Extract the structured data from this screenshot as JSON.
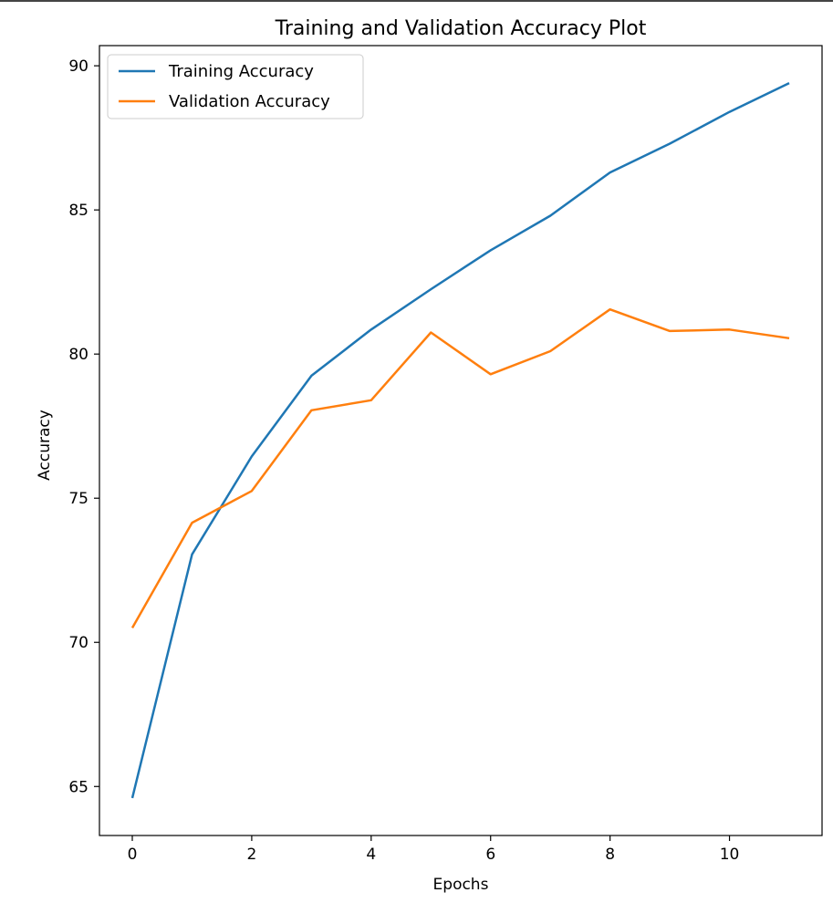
{
  "chart_data": {
    "type": "line",
    "title": "Training and Validation Accuracy Plot",
    "xlabel": "Epochs",
    "ylabel": "Accuracy",
    "x": [
      0,
      1,
      2,
      3,
      4,
      5,
      6,
      7,
      8,
      9,
      10,
      11
    ],
    "xlim": [
      -0.55,
      11.55
    ],
    "ylim": [
      63.3,
      90.7
    ],
    "xticks": [
      0,
      2,
      4,
      6,
      8,
      10
    ],
    "yticks": [
      65,
      70,
      75,
      80,
      85,
      90
    ],
    "xtick_labels": [
      "0",
      "2",
      "4",
      "6",
      "8",
      "10"
    ],
    "ytick_labels": [
      "65",
      "70",
      "75",
      "80",
      "85",
      "90"
    ],
    "grid": false,
    "legend_position": "top-left",
    "series": [
      {
        "name": "Training Accuracy",
        "color": "#1f77b4",
        "values": [
          64.6,
          73.05,
          76.45,
          79.25,
          80.85,
          82.25,
          83.6,
          84.8,
          86.3,
          87.3,
          88.4,
          89.4
        ]
      },
      {
        "name": "Validation Accuracy",
        "color": "#ff7f0e",
        "values": [
          70.5,
          74.15,
          75.25,
          78.05,
          78.4,
          80.75,
          79.3,
          80.1,
          81.55,
          80.8,
          80.85,
          80.55
        ]
      }
    ]
  }
}
